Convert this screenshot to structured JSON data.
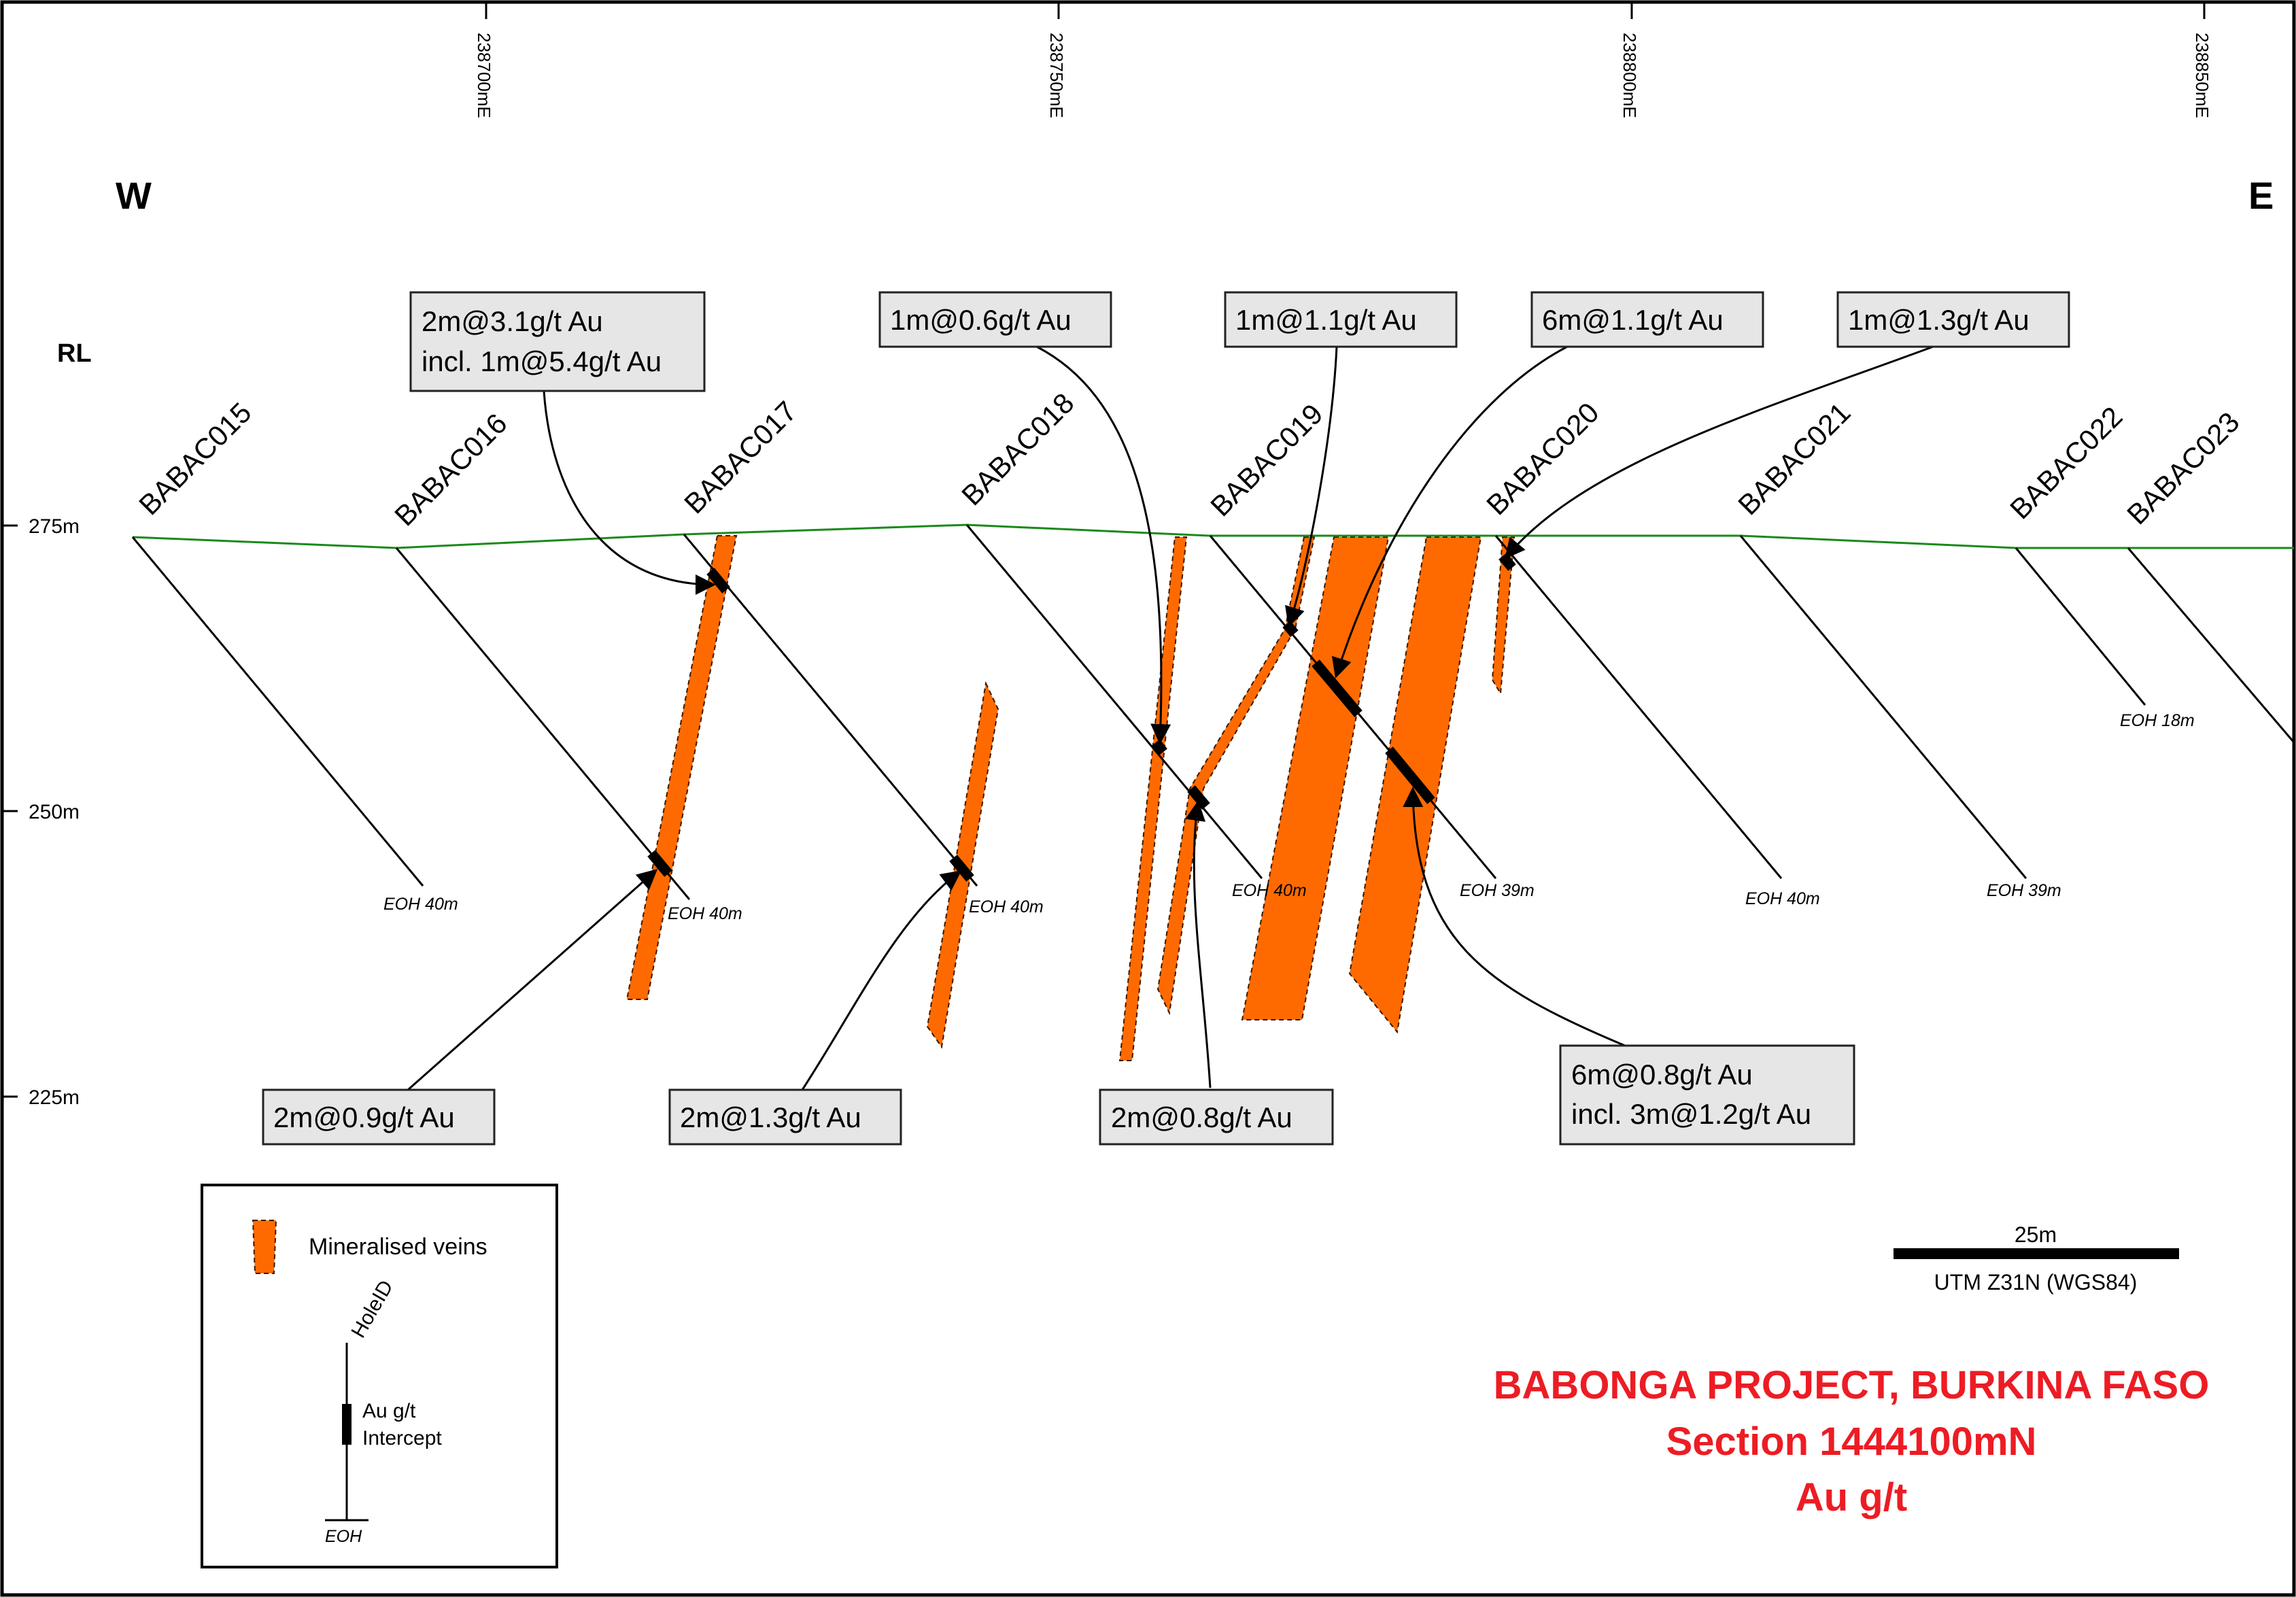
{
  "eastings": [
    "238700mE",
    "238750mE",
    "238800mE",
    "238850mE"
  ],
  "compass": {
    "west": "W",
    "east": "E"
  },
  "rl_axis": {
    "title": "RL",
    "ticks": [
      "275m",
      "250m",
      "225m"
    ]
  },
  "holes": [
    "BABAC015",
    "BABAC016",
    "BABAC017",
    "BABAC018",
    "BABAC019",
    "BABAC020",
    "BABAC021",
    "BABAC022",
    "BABAC023"
  ],
  "eoh_labels": [
    "EOH 40m",
    "EOH 40m",
    "EOH 40m",
    "EOH 40m",
    "EOH 39m",
    "EOH 40m",
    "EOH 39m",
    "EOH 18m"
  ],
  "callouts": [
    {
      "line1": "2m@3.1g/t Au",
      "line2": "incl. 1m@5.4g/t Au"
    },
    {
      "line1": "1m@0.6g/t Au"
    },
    {
      "line1": "1m@1.1g/t Au"
    },
    {
      "line1": "6m@1.1g/t Au"
    },
    {
      "line1": "1m@1.3g/t Au"
    },
    {
      "line1": "2m@0.9g/t Au"
    },
    {
      "line1": "2m@1.3g/t Au"
    },
    {
      "line1": "2m@0.8g/t Au"
    },
    {
      "line1": "6m@0.8g/t Au",
      "line2": "incl. 3m@1.2g/t Au"
    }
  ],
  "legend": {
    "veins": "Mineralised veins",
    "hole_id": "HoleID",
    "intercept_line1": "Au g/t",
    "intercept_line2": "Intercept",
    "eoh": "EOH"
  },
  "scale_bar": {
    "length": "25m",
    "crs": "UTM Z31N (WGS84)"
  },
  "title": {
    "line1": "BABONGA PROJECT, BURKINA FASO",
    "line2": "Section 1444100mN",
    "line3": "Au g/t"
  },
  "colors": {
    "vein": "#ff6a00",
    "topography": "#1a8a1a",
    "title": "#ed1c24",
    "callout_fill": "#e6e6e6"
  }
}
